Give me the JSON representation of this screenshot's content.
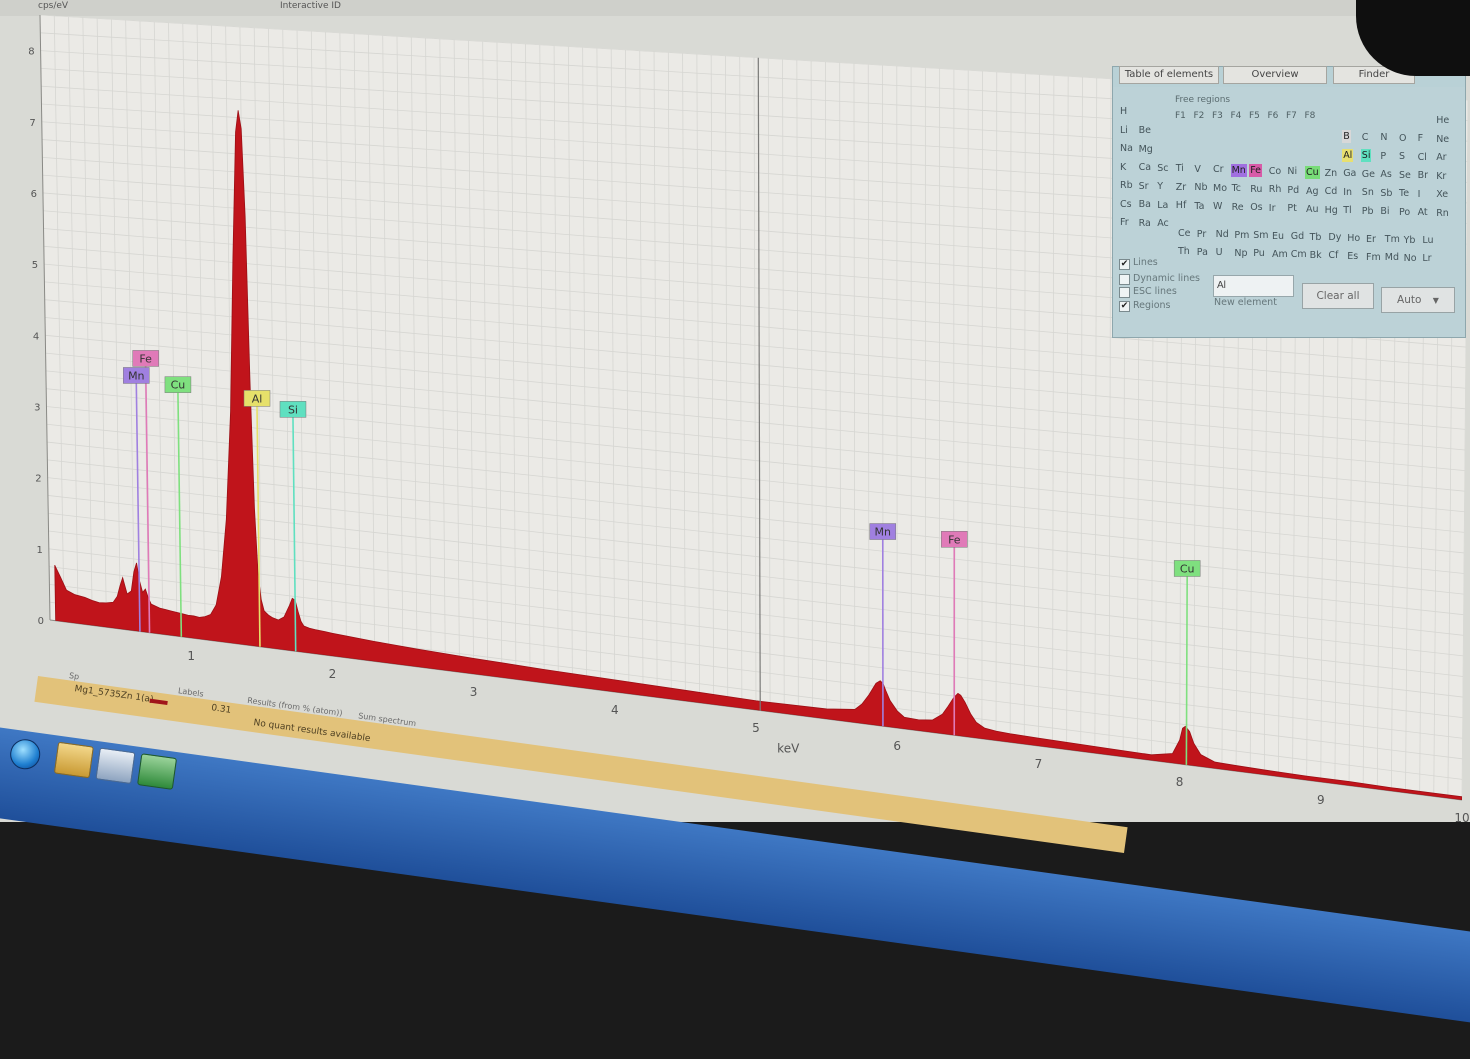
{
  "window": {
    "top_left_label": "cps/eV",
    "top_mid_label": "Interactive ID"
  },
  "chart_data": {
    "type": "area",
    "xlabel": "keV",
    "ylabel": "cps/eV",
    "xlim": [
      0,
      10
    ],
    "ylim": [
      0,
      8.5
    ],
    "x_ticks": [
      1,
      2,
      3,
      4,
      5,
      6,
      7,
      8,
      9,
      10
    ],
    "y_ticks": [
      0,
      1,
      2,
      3,
      4,
      5,
      6,
      7,
      8
    ],
    "grid": true,
    "fill_color": "#c0141b",
    "cursor_keV": 5.03,
    "series": [
      {
        "x": [
          0.04,
          0.08,
          0.12,
          0.18,
          0.25,
          0.3,
          0.35,
          0.4,
          0.45,
          0.48,
          0.5,
          0.52,
          0.55,
          0.58,
          0.6,
          0.62,
          0.64,
          0.66,
          0.68,
          0.7,
          0.72,
          0.75,
          0.78,
          0.82,
          0.86,
          0.9,
          0.94,
          0.98,
          1.02,
          1.06,
          1.1,
          1.14,
          1.18,
          1.22,
          1.26,
          1.3,
          1.33,
          1.36,
          1.38,
          1.4,
          1.42,
          1.44,
          1.46,
          1.48,
          1.5,
          1.52,
          1.55,
          1.58,
          1.62,
          1.66,
          1.7,
          1.72,
          1.74,
          1.76,
          1.78,
          1.8,
          1.84,
          1.88,
          1.95,
          2.0,
          2.3,
          2.6,
          3.0,
          3.5,
          4.0,
          4.5,
          5.0,
          5.5,
          5.7,
          5.75,
          5.8,
          5.85,
          5.88,
          5.9,
          5.92,
          5.95,
          6.0,
          6.05,
          6.15,
          6.25,
          6.32,
          6.36,
          6.4,
          6.43,
          6.45,
          6.48,
          6.52,
          6.56,
          6.62,
          6.7,
          6.8,
          7.0,
          7.5,
          7.8,
          7.95,
          8.0,
          8.02,
          8.04,
          8.07,
          8.1,
          8.15,
          8.25,
          8.4,
          8.6,
          8.9,
          9.2,
          9.5,
          9.8,
          10.0
        ],
        "y": [
          0.78,
          0.62,
          0.45,
          0.4,
          0.38,
          0.35,
          0.33,
          0.34,
          0.36,
          0.45,
          0.6,
          0.72,
          0.5,
          0.55,
          0.82,
          0.95,
          0.7,
          0.55,
          0.6,
          0.48,
          0.4,
          0.38,
          0.36,
          0.35,
          0.34,
          0.33,
          0.32,
          0.31,
          0.31,
          0.3,
          0.32,
          0.36,
          0.5,
          0.9,
          1.7,
          3.2,
          5.3,
          7.05,
          7.35,
          7.1,
          5.9,
          3.6,
          1.9,
          1.0,
          0.65,
          0.5,
          0.45,
          0.42,
          0.4,
          0.45,
          0.62,
          0.72,
          0.7,
          0.55,
          0.42,
          0.36,
          0.34,
          0.33,
          0.32,
          0.31,
          0.27,
          0.24,
          0.21,
          0.18,
          0.16,
          0.14,
          0.12,
          0.13,
          0.17,
          0.25,
          0.38,
          0.54,
          0.58,
          0.55,
          0.46,
          0.34,
          0.22,
          0.15,
          0.14,
          0.16,
          0.25,
          0.36,
          0.48,
          0.54,
          0.52,
          0.44,
          0.3,
          0.2,
          0.14,
          0.12,
          0.11,
          0.1,
          0.08,
          0.07,
          0.12,
          0.3,
          0.45,
          0.48,
          0.42,
          0.28,
          0.15,
          0.08,
          0.07,
          0.06,
          0.05,
          0.05,
          0.04,
          0.04,
          0.04
        ]
      }
    ],
    "element_markers": [
      {
        "element": "Fe",
        "energy_keV": 0.705,
        "height": 3.7,
        "color": "#e07ab8"
      },
      {
        "element": "Mn",
        "energy_keV": 0.637,
        "height": 3.45,
        "color": "#a080e0"
      },
      {
        "element": "Cu",
        "energy_keV": 0.93,
        "height": 3.38,
        "color": "#7fe07f"
      },
      {
        "element": "Al",
        "energy_keV": 1.487,
        "height": 3.3,
        "color": "#e6e06a"
      },
      {
        "element": "Si",
        "energy_keV": 1.74,
        "height": 3.2,
        "color": "#5fe0c0"
      },
      {
        "element": "Mn",
        "energy_keV": 5.899,
        "height": 2.4,
        "color": "#a080e0"
      },
      {
        "element": "Fe",
        "energy_keV": 6.404,
        "height": 2.4,
        "color": "#e07ab8"
      },
      {
        "element": "Cu",
        "energy_keV": 8.048,
        "height": 2.35,
        "color": "#7fe07f"
      }
    ]
  },
  "periodic_panel": {
    "tabs": [
      "Table of elements",
      "Overview",
      "Finder"
    ],
    "free_regions_label": "Free regions",
    "free_regions": [
      "F1",
      "F2",
      "F3",
      "F4",
      "F5",
      "F6",
      "F7",
      "F8"
    ],
    "rows": [
      [
        "H",
        "He"
      ],
      [
        "Li",
        "Be",
        "B",
        "C",
        "N",
        "O",
        "F",
        "Ne"
      ],
      [
        "Na",
        "Mg",
        "Al",
        "Si",
        "P",
        "S",
        "Cl",
        "Ar"
      ],
      [
        "K",
        "Ca",
        "Sc",
        "Ti",
        "V",
        "Cr",
        "Mn",
        "Fe",
        "Co",
        "Ni",
        "Cu",
        "Zn",
        "Ga",
        "Ge",
        "As",
        "Se",
        "Br",
        "Kr"
      ],
      [
        "Rb",
        "Sr",
        "Y",
        "Zr",
        "Nb",
        "Mo",
        "Tc",
        "Ru",
        "Rh",
        "Pd",
        "Ag",
        "Cd",
        "In",
        "Sn",
        "Sb",
        "Te",
        "I",
        "Xe"
      ],
      [
        "Cs",
        "Ba",
        "La",
        "Hf",
        "Ta",
        "W",
        "Re",
        "Os",
        "Ir",
        "Pt",
        "Au",
        "Hg",
        "Tl",
        "Pb",
        "Bi",
        "Po",
        "At",
        "Rn"
      ],
      [
        "Fr",
        "Ra",
        "Ac"
      ]
    ],
    "lanthanides": [
      "Ce",
      "Pr",
      "Nd",
      "Pm",
      "Sm",
      "Eu",
      "Gd",
      "Tb",
      "Dy",
      "Ho",
      "Er",
      "Tm",
      "Yb",
      "Lu"
    ],
    "actinides": [
      "Th",
      "Pa",
      "U",
      "Np",
      "Pu",
      "Am",
      "Cm",
      "Bk",
      "Cf",
      "Es",
      "Fm",
      "Md",
      "No",
      "Lr"
    ],
    "highlighted": {
      "Mn": "#a070e0",
      "Fe": "#d85aa8",
      "Cu": "#78dc78",
      "Al": "#e8e070",
      "Si": "#5fe0c0",
      "B": "#d8d8d8"
    },
    "options": {
      "lines_label": "Lines",
      "lines_checked": true,
      "dynamic_lines_label": "Dynamic lines",
      "esc_lines_label": "ESC lines",
      "regions_label": "Regions",
      "regions_checked": true
    },
    "element_input_value": "Al",
    "new_element_label": "New element",
    "clear_all_label": "Clear all",
    "auto_label": "Auto"
  },
  "status": {
    "above_label_1": "Sp",
    "above_label_2": "Labels",
    "above_label_3": "Results (from % (atom))",
    "above_label_4": "Sum spectrum",
    "spectrum_name": "Mg1_5735Zn 1(a)",
    "value": "0.31",
    "result_message": "No quant results available"
  },
  "colors": {
    "accent": "#c0141b",
    "panel": "#b9d1d6",
    "taskbar": "#2a64b8"
  },
  "taskbar": {
    "icons": [
      "start-orb-icon",
      "explorer-folder-icon",
      "app-window-icon",
      "app-green-icon"
    ]
  }
}
